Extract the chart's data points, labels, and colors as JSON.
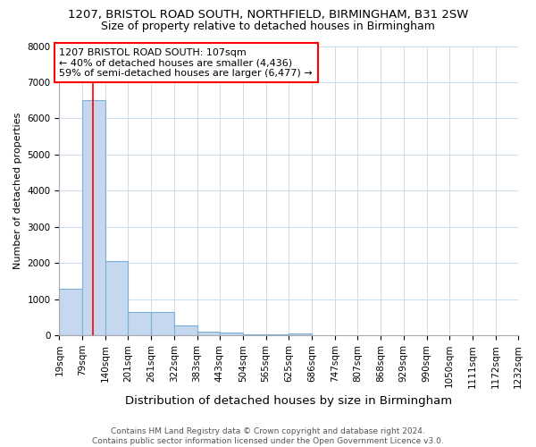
{
  "title": "1207, BRISTOL ROAD SOUTH, NORTHFIELD, BIRMINGHAM, B31 2SW",
  "subtitle": "Size of property relative to detached houses in Birmingham",
  "xlabel": "Distribution of detached houses by size in Birmingham",
  "ylabel": "Number of detached properties",
  "bin_edges": [
    19,
    79,
    140,
    201,
    261,
    322,
    383,
    443,
    504,
    565,
    625,
    686,
    747,
    807,
    868,
    929,
    990,
    1050,
    1111,
    1172,
    1232
  ],
  "bar_heights": [
    1300,
    6500,
    2050,
    650,
    650,
    280,
    110,
    80,
    30,
    30,
    60,
    0,
    0,
    0,
    0,
    0,
    0,
    0,
    0,
    0
  ],
  "bar_color": "#c5d8ef",
  "bar_edge_color": "#7bafd4",
  "property_line_x": 107,
  "property_line_color": "red",
  "annotation_line1": "1207 BRISTOL ROAD SOUTH: 107sqm",
  "annotation_line2": "← 40% of detached houses are smaller (4,436)",
  "annotation_line3": "59% of semi-detached houses are larger (6,477) →",
  "ylim": [
    0,
    8000
  ],
  "yticks": [
    0,
    1000,
    2000,
    3000,
    4000,
    5000,
    6000,
    7000,
    8000
  ],
  "grid_color": "#ccddee",
  "background_color": "white",
  "footnote": "Contains HM Land Registry data © Crown copyright and database right 2024.\nContains public sector information licensed under the Open Government Licence v3.0.",
  "title_fontsize": 9.5,
  "subtitle_fontsize": 9,
  "xlabel_fontsize": 9.5,
  "ylabel_fontsize": 8,
  "tick_fontsize": 7.5,
  "annotation_fontsize": 8,
  "footnote_fontsize": 6.5
}
